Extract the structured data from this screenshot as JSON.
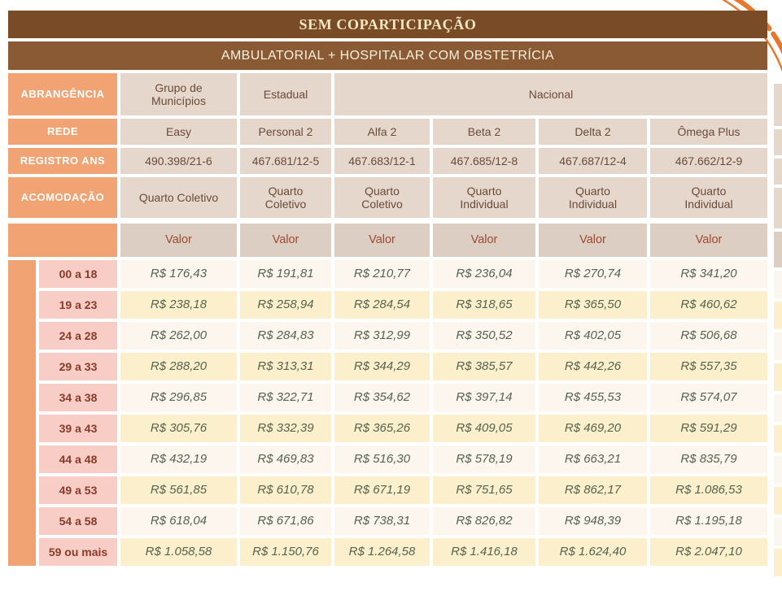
{
  "title_bar": {
    "text": "SEM COPARTICIPAÇÃO"
  },
  "subtitle_bar": {
    "text": "AMBULATORIAL + HOSPITALAR COM OBSTETRÍCIA"
  },
  "header_rows": [
    {
      "label": "ABRANGÊNCIA",
      "cells": [
        "Grupo de Municípios",
        "Estadual",
        "Nacional"
      ]
    },
    {
      "label": "REDE",
      "cells": [
        "Easy",
        "Personal 2",
        "Alfa 2",
        "Beta 2",
        "Delta 2",
        "Ômega Plus"
      ]
    },
    {
      "label": "REGISTRO ANS",
      "cells": [
        "490.398/21-6",
        "467.681/12-5",
        "467.683/12-1",
        "467.685/12-8",
        "467.687/12-4",
        "467.662/12-9"
      ]
    },
    {
      "label": "ACOMODAÇÃO",
      "cells": [
        "Quarto Coletivo",
        "Quarto Coletivo",
        "Quarto Coletivo",
        "Quarto Individual",
        "Quarto Individual",
        "Quarto Individual"
      ]
    }
  ],
  "valor_row": {
    "labels": [
      "Valor",
      "Valor",
      "Valor",
      "Valor",
      "Valor",
      "Valor"
    ]
  },
  "price_rows": [
    {
      "age": "00 a 18",
      "values": [
        "R$ 176,43",
        "R$ 191,81",
        "R$ 210,77",
        "R$ 236,04",
        "R$ 270,74",
        "R$ 341,20"
      ]
    },
    {
      "age": "19 a 23",
      "values": [
        "R$ 238,18",
        "R$ 258,94",
        "R$ 284,54",
        "R$ 318,65",
        "R$ 365,50",
        "R$ 460,62"
      ]
    },
    {
      "age": "24 a 28",
      "values": [
        "R$ 262,00",
        "R$ 284,83",
        "R$ 312,99",
        "R$ 350,52",
        "R$ 402,05",
        "R$ 506,68"
      ]
    },
    {
      "age": "29 a 33",
      "values": [
        "R$ 288,20",
        "R$ 313,31",
        "R$ 344,29",
        "R$ 385,57",
        "R$ 442,26",
        "R$ 557,35"
      ]
    },
    {
      "age": "34 a 38",
      "values": [
        "R$ 296,85",
        "R$ 322,71",
        "R$ 354,62",
        "R$ 397,14",
        "R$ 455,53",
        "R$ 574,07"
      ]
    },
    {
      "age": "39 a 43",
      "values": [
        "R$ 305,76",
        "R$ 332,39",
        "R$ 365,26",
        "R$ 409,05",
        "R$ 469,20",
        "R$ 591,29"
      ]
    },
    {
      "age": "44 a 48",
      "values": [
        "R$ 432,19",
        "R$ 469,83",
        "R$ 516,30",
        "R$ 578,19",
        "R$ 663,21",
        "R$ 835,79"
      ]
    },
    {
      "age": "49 a 53",
      "values": [
        "R$ 561,85",
        "R$ 610,78",
        "R$ 671,19",
        "R$ 751,65",
        "R$ 862,17",
        "R$ 1.086,53"
      ]
    },
    {
      "age": "54 a 58",
      "values": [
        "R$ 618,04",
        "R$ 671,86",
        "R$ 738,31",
        "R$ 826,82",
        "R$ 948,39",
        "R$ 1.195,18"
      ]
    },
    {
      "age": "59 ou mais",
      "values": [
        "R$ 1.058,58",
        "R$ 1.150,76",
        "R$ 1.264,58",
        "R$ 1.416,18",
        "R$ 1.624,40",
        "R$ 2.047,10"
      ]
    }
  ],
  "colors": {
    "brown1": "#7a4b27",
    "brown2": "#8a5a34",
    "orange": "#f2a373",
    "beige": "#e5d7cc",
    "valor_beige": "#ddcec3",
    "pink": "#f7cdc6",
    "cream": "#fdf6ee",
    "yellow": "#fbf0cb",
    "maroon_age": "#8a3a28",
    "maroon_valor": "#9c4a31",
    "brown_text": "#6b4a39",
    "green_value": "#57624f",
    "title_text_1": "#f3e8c2",
    "title_text_2": "#f7f0dd",
    "swirl": "#e8772b"
  }
}
